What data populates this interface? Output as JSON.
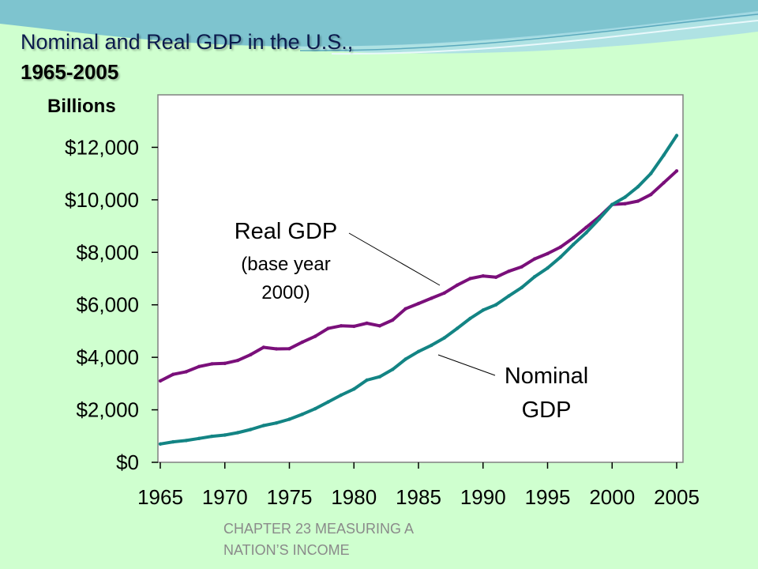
{
  "slide": {
    "title_line1": "Nominal and Real GDP in the U.S.,",
    "title_line2": "1965-2005",
    "footer_line1": "CHAPTER 23  MEASURING A",
    "footer_line2": "NATION’S INCOME"
  },
  "colors": {
    "background": "#cfffcf",
    "real_gdp": "#7a0f7a",
    "nominal_gdp": "#138484"
  },
  "chart_data": {
    "type": "line",
    "ylabel": "Billions",
    "ylim": [
      0,
      14000
    ],
    "xlim": [
      1965,
      2005
    ],
    "x_ticks": [
      "1965",
      "1970",
      "1975",
      "1980",
      "1985",
      "1990",
      "1995",
      "2000",
      "2005"
    ],
    "y_ticks": [
      "$0",
      "$2,000",
      "$4,000",
      "$6,000",
      "$8,000",
      "$10,000",
      "$12,000"
    ],
    "annotations": {
      "real_line1": "Real GDP",
      "real_line2": "(base year",
      "real_line3": "2000)",
      "nominal_line1": "Nominal",
      "nominal_line2": "GDP"
    },
    "series": [
      {
        "key": "real",
        "x": [
          1965,
          1966,
          1967,
          1968,
          1969,
          1970,
          1971,
          1972,
          1973,
          1974,
          1975,
          1976,
          1977,
          1978,
          1979,
          1980,
          1981,
          1982,
          1983,
          1984,
          1985,
          1986,
          1987,
          1988,
          1989,
          1990,
          1991,
          1992,
          1993,
          1994,
          1995,
          1996,
          1997,
          1998,
          1999,
          2000,
          2001,
          2002,
          2003,
          2004,
          2005
        ],
        "values": [
          3100,
          3350,
          3450,
          3650,
          3750,
          3770,
          3880,
          4100,
          4380,
          4320,
          4330,
          4580,
          4800,
          5100,
          5200,
          5180,
          5300,
          5200,
          5420,
          5850,
          6050,
          6250,
          6450,
          6750,
          7000,
          7100,
          7050,
          7280,
          7450,
          7750,
          7950,
          8200,
          8550,
          8950,
          9350,
          9820,
          9850,
          9950,
          10200,
          10650,
          11100
        ]
      },
      {
        "key": "nominal",
        "x": [
          1965,
          1966,
          1967,
          1968,
          1969,
          1970,
          1971,
          1972,
          1973,
          1974,
          1975,
          1976,
          1977,
          1978,
          1979,
          1980,
          1981,
          1982,
          1983,
          1984,
          1985,
          1986,
          1987,
          1988,
          1989,
          1990,
          1991,
          1992,
          1993,
          1994,
          1995,
          1996,
          1997,
          1998,
          1999,
          2000,
          2001,
          2002,
          2003,
          2004,
          2005
        ],
        "values": [
          700,
          780,
          830,
          910,
          990,
          1040,
          1130,
          1250,
          1400,
          1500,
          1640,
          1830,
          2040,
          2300,
          2560,
          2790,
          3130,
          3260,
          3540,
          3930,
          4220,
          4460,
          4740,
          5100,
          5480,
          5800,
          6000,
          6340,
          6660,
          7070,
          7400,
          7820,
          8300,
          8750,
          9270,
          9820,
          10100,
          10500,
          11000,
          11700,
          12450
        ]
      }
    ]
  }
}
